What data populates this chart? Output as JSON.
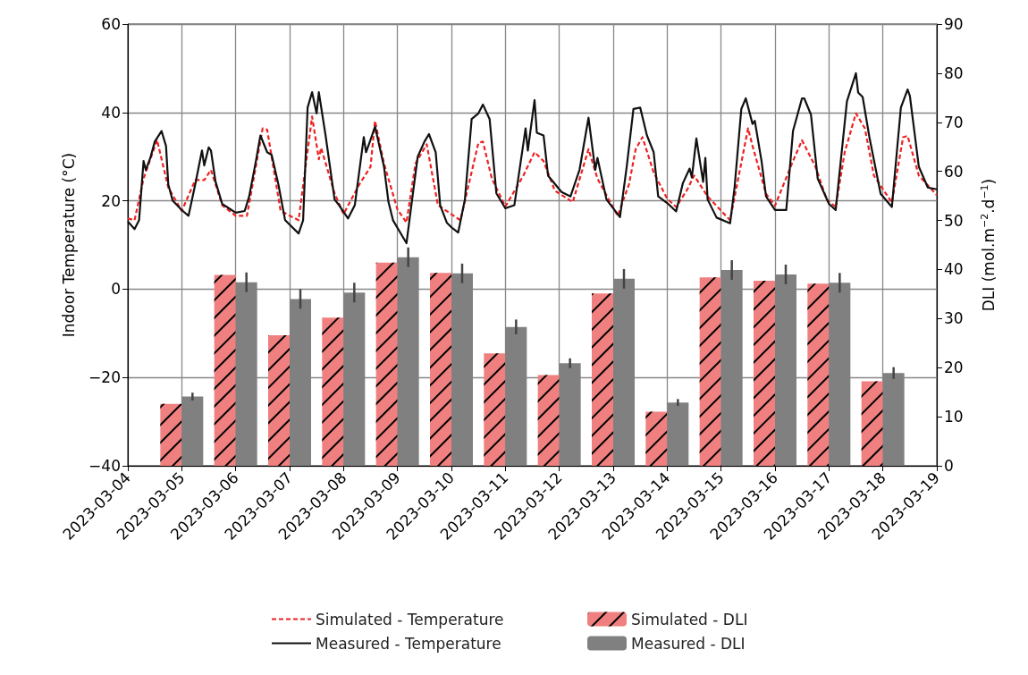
{
  "chart_data": {
    "type": "line",
    "ylabel": "Indoor Temperature (°C)",
    "y2label": "DLI (mol.m$^{−2}$.d$^{−1}$)",
    "xlim": [
      "2023-03-04",
      "2023-03-19"
    ],
    "xticks": [
      "2023-03-04",
      "2023-03-05",
      "2023-03-06",
      "2023-03-07",
      "2023-03-08",
      "2023-03-09",
      "2023-03-10",
      "2023-03-11",
      "2023-03-12",
      "2023-03-13",
      "2023-03-14",
      "2023-03-15",
      "2023-03-16",
      "2023-03-17",
      "2023-03-18",
      "2023-03-19"
    ],
    "ylim": [
      -40,
      60
    ],
    "yticks": [
      {
        "value": -40,
        "label": "−40"
      },
      {
        "value": -20,
        "label": "−20"
      },
      0,
      20,
      40,
      60
    ],
    "y2lim": [
      0,
      90
    ],
    "y2ticks": [
      0,
      10,
      20,
      30,
      40,
      50,
      60,
      70,
      80,
      90
    ],
    "grid": true,
    "legend": "bottom",
    "series": [
      {
        "name": "Simulated - Temperature",
        "line_style": "dashed",
        "color": "#ee2222",
        "x": [
          "2023-03-04T00:00",
          "2023-03-04T03:00",
          "2023-03-04T07:00",
          "2023-03-04T13:00",
          "2023-03-04T18:00",
          "2023-03-05T00:00",
          "2023-03-05T06:00",
          "2023-03-05T10:00",
          "2023-03-05T13:00",
          "2023-03-05T18:00",
          "2023-03-06T00:00",
          "2023-03-06T05:00",
          "2023-03-06T08:00",
          "2023-03-06T12:00",
          "2023-03-06T14:00",
          "2023-03-06T20:00",
          "2023-03-07T04:00",
          "2023-03-07T10:00",
          "2023-03-07T13:00",
          "2023-03-07T14:00",
          "2023-03-07T20:00",
          "2023-03-08T00:00",
          "2023-03-08T07:00",
          "2023-03-08T12:00",
          "2023-03-08T14:00",
          "2023-03-08T18:00",
          "2023-03-09T00:00",
          "2023-03-09T04:00",
          "2023-03-09T08:00",
          "2023-03-09T13:00",
          "2023-03-09T18:00",
          "2023-03-10T04:00",
          "2023-03-10T12:00",
          "2023-03-10T14:00",
          "2023-03-10T18:00",
          "2023-03-11T00:00",
          "2023-03-11T08:00",
          "2023-03-11T13:00",
          "2023-03-11T17:00",
          "2023-03-11T22:00",
          "2023-03-12T06:00",
          "2023-03-12T13:00",
          "2023-03-12T17:00",
          "2023-03-13T02:00",
          "2023-03-13T07:00",
          "2023-03-13T10:00",
          "2023-03-13T13:00",
          "2023-03-13T18:00",
          "2023-03-14T00:00",
          "2023-03-14T04:00",
          "2023-03-14T09:00",
          "2023-03-14T12:00",
          "2023-03-14T18:00",
          "2023-03-15T04:00",
          "2023-03-15T12:00",
          "2023-03-15T14:00",
          "2023-03-15T20:00",
          "2023-03-16T00:00",
          "2023-03-16T08:00",
          "2023-03-16T12:00",
          "2023-03-16T18:00",
          "2023-03-16T23:00",
          "2023-03-17T03:00",
          "2023-03-17T07:00",
          "2023-03-17T12:00",
          "2023-03-17T16:00",
          "2023-03-17T20:00",
          "2023-03-18T04:00",
          "2023-03-18T09:00",
          "2023-03-18T11:00",
          "2023-03-18T16:00",
          "2023-03-19T00:00"
        ],
        "values": [
          16,
          15.6,
          25,
          33.8,
          23,
          17.7,
          24.7,
          24.7,
          27,
          19,
          16.6,
          16.6,
          25,
          36.4,
          36.1,
          17.7,
          15.6,
          39.1,
          29.4,
          32,
          21.7,
          17,
          23.7,
          27.7,
          38.1,
          28.4,
          18,
          15.1,
          28.4,
          32.8,
          19,
          15.6,
          33.1,
          33.4,
          25,
          18.7,
          25.7,
          31,
          29,
          22.3,
          19.7,
          31.7,
          25,
          16.6,
          23.7,
          31.7,
          34.4,
          26.4,
          20.5,
          18.6,
          22.6,
          25.7,
          21,
          15.6,
          36.4,
          32.4,
          21.6,
          18.9,
          29,
          33.7,
          27.7,
          20.3,
          18.6,
          31,
          39.8,
          36.4,
          25.7,
          19.6,
          34.4,
          34.7,
          25.7,
          21.3
        ]
      },
      {
        "name": "Measured - Temperature",
        "line_style": "solid",
        "color": "#111111",
        "x": [
          "2023-03-04T00:00",
          "2023-03-04T03:00",
          "2023-03-04T05:00",
          "2023-03-04T07:00",
          "2023-03-04T08:00",
          "2023-03-04T10:00",
          "2023-03-04T12:00",
          "2023-03-04T15:00",
          "2023-03-04T17:00",
          "2023-03-04T18:00",
          "2023-03-04T20:00",
          "2023-03-05T00:00",
          "2023-03-05T03:00",
          "2023-03-05T06:00",
          "2023-03-05T09:00",
          "2023-03-05T10:00",
          "2023-03-05T12:00",
          "2023-03-05T13:00",
          "2023-03-05T15:00",
          "2023-03-05T18:00",
          "2023-03-06T00:00",
          "2023-03-06T04:00",
          "2023-03-06T06:00",
          "2023-03-06T09:00",
          "2023-03-06T11:00",
          "2023-03-06T14:00",
          "2023-03-06T16:00",
          "2023-03-06T19:00",
          "2023-03-06T22:00",
          "2023-03-07T04:00",
          "2023-03-07T06:00",
          "2023-03-07T08:00",
          "2023-03-07T10:00",
          "2023-03-07T12:00",
          "2023-03-07T13:00",
          "2023-03-07T16:00",
          "2023-03-07T20:00",
          "2023-03-07T22:00",
          "2023-03-08T02:00",
          "2023-03-08T05:00",
          "2023-03-08T09:00",
          "2023-03-08T10:00",
          "2023-03-08T12:00",
          "2023-03-08T14:00",
          "2023-03-08T18:00",
          "2023-03-08T20:00",
          "2023-03-08T22:00",
          "2023-03-09T04:00",
          "2023-03-09T06:00",
          "2023-03-09T09:00",
          "2023-03-09T12:00",
          "2023-03-09T14:00",
          "2023-03-09T17:00",
          "2023-03-09T19:00",
          "2023-03-09T22:00",
          "2023-03-10T00:00",
          "2023-03-10T03:00",
          "2023-03-10T06:00",
          "2023-03-10T09:00",
          "2023-03-10T12:00",
          "2023-03-10T14:00",
          "2023-03-10T17:00",
          "2023-03-10T20:00",
          "2023-03-11T00:00",
          "2023-03-11T04:00",
          "2023-03-11T09:00",
          "2023-03-11T10:00",
          "2023-03-11T13:00",
          "2023-03-11T14:00",
          "2023-03-11T17:00",
          "2023-03-11T19:00",
          "2023-03-12T01:00",
          "2023-03-12T05:00",
          "2023-03-12T09:00",
          "2023-03-12T13:00",
          "2023-03-12T16:00",
          "2023-03-12T17:00",
          "2023-03-12T21:00",
          "2023-03-13T03:00",
          "2023-03-13T06:00",
          "2023-03-13T09:00",
          "2023-03-13T12:00",
          "2023-03-13T15:00",
          "2023-03-13T18:00",
          "2023-03-13T20:00",
          "2023-03-14T00:00",
          "2023-03-14T04:00",
          "2023-03-14T07:00",
          "2023-03-14T10:00",
          "2023-03-14T11:00",
          "2023-03-14T13:00",
          "2023-03-14T16:00",
          "2023-03-14T17:00",
          "2023-03-14T18:00",
          "2023-03-14T22:00",
          "2023-03-15T04:00",
          "2023-03-15T06:00",
          "2023-03-15T09:00",
          "2023-03-15T11:00",
          "2023-03-15T14:00",
          "2023-03-15T15:00",
          "2023-03-15T18:00",
          "2023-03-15T20:00",
          "2023-03-16T00:00",
          "2023-03-16T05:00",
          "2023-03-16T08:00",
          "2023-03-16T12:00",
          "2023-03-16T13:00",
          "2023-03-16T16:00",
          "2023-03-16T19:00",
          "2023-03-17T00:00",
          "2023-03-17T03:00",
          "2023-03-17T08:00",
          "2023-03-17T12:00",
          "2023-03-17T13:00",
          "2023-03-17T15:00",
          "2023-03-17T18:00",
          "2023-03-17T23:00",
          "2023-03-18T04:00",
          "2023-03-18T08:00",
          "2023-03-18T11:00",
          "2023-03-18T12:00",
          "2023-03-18T16:00",
          "2023-03-18T20:00",
          "2023-03-19T00:00"
        ],
        "values": [
          15.3,
          13.6,
          15.6,
          29,
          27,
          29.7,
          33.4,
          35.8,
          32.4,
          23.7,
          20,
          17.9,
          16.6,
          23.7,
          31.4,
          28,
          32.1,
          31.4,
          24.4,
          19.3,
          17.3,
          17.7,
          21,
          29,
          34.8,
          31,
          30.4,
          23.7,
          15.6,
          12.6,
          15.6,
          41.1,
          44.6,
          39.8,
          44.6,
          34.8,
          20.3,
          19,
          16,
          19,
          34.4,
          31,
          33.8,
          36.8,
          27.7,
          19.7,
          15.6,
          10.4,
          18.3,
          30,
          33.4,
          35.1,
          31,
          19,
          15,
          14,
          12.8,
          20.3,
          38.5,
          39.8,
          41.8,
          38.5,
          21.7,
          18.3,
          19,
          36.4,
          31.4,
          42.8,
          35.4,
          34.8,
          25.7,
          22,
          21,
          27,
          38.8,
          27,
          29.7,
          20.3,
          16.3,
          27.7,
          40.8,
          41.1,
          34.8,
          31,
          21,
          19.5,
          17.6,
          24,
          27.3,
          25.3,
          34.1,
          24.3,
          29.7,
          20.3,
          16.2,
          14.9,
          23,
          40.8,
          43.2,
          37.4,
          38.1,
          29,
          21,
          17.9,
          17.9,
          35.8,
          43.2,
          43.2,
          39.5,
          25,
          19.3,
          17.9,
          42.5,
          48.9,
          44.5,
          43.5,
          34.4,
          21.6,
          18.6,
          41.1,
          45.2,
          43.8,
          27.7,
          23,
          22.6
        ]
      },
      {
        "name": "Simulated - DLI",
        "type": "bar",
        "axis": "y2",
        "color": "#f08080",
        "x": [
          "2023-03-05",
          "2023-03-06",
          "2023-03-07",
          "2023-03-08",
          "2023-03-09",
          "2023-03-10",
          "2023-03-11",
          "2023-03-12",
          "2023-03-13",
          "2023-03-14",
          "2023-03-15",
          "2023-03-16",
          "2023-03-17",
          "2023-03-18"
        ],
        "values": [
          12.6,
          38.9,
          26.6,
          30.2,
          41.4,
          39.3,
          22.9,
          18.5,
          35.1,
          11.0,
          38.4,
          37.7,
          37.1,
          17.2
        ]
      },
      {
        "name": "Measured - DLI",
        "type": "bar",
        "axis": "y2",
        "color": "#808080",
        "x": [
          "2023-03-05",
          "2023-03-06",
          "2023-03-07",
          "2023-03-08",
          "2023-03-09",
          "2023-03-10",
          "2023-03-11",
          "2023-03-12",
          "2023-03-13",
          "2023-03-14",
          "2023-03-15",
          "2023-03-16",
          "2023-03-17",
          "2023-03-18"
        ],
        "values": [
          14.1,
          37.4,
          34.0,
          35.3,
          42.5,
          39.2,
          28.3,
          20.9,
          38.1,
          12.9,
          39.9,
          39.0,
          37.3,
          18.9
        ],
        "errors": [
          0.8,
          2,
          2,
          2,
          2,
          2,
          1.5,
          1,
          2,
          0.7,
          2,
          2,
          2,
          1.2
        ]
      }
    ]
  }
}
